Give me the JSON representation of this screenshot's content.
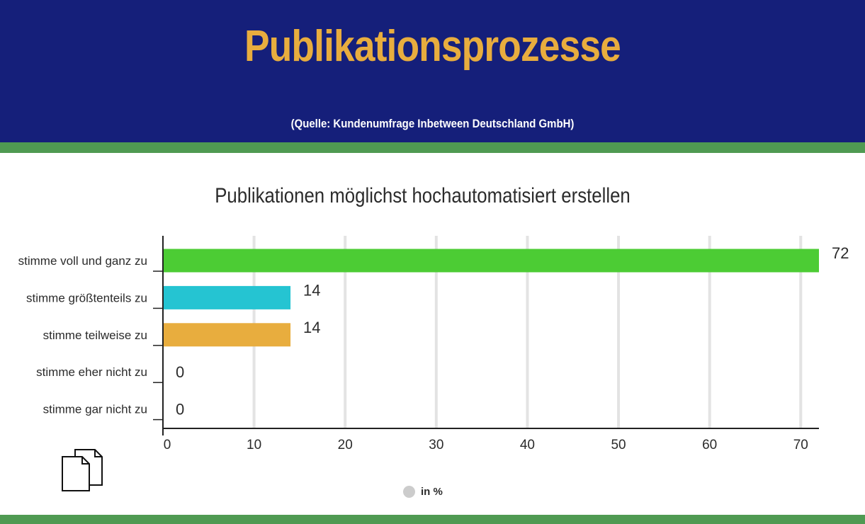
{
  "header": {
    "title": "Publikationsprozesse",
    "source": "(Quelle: Kundenumfrage Inbetween Deutschland GmbH)"
  },
  "colors": {
    "header_bg": "#151f7a",
    "title": "#e8ad3e",
    "band": "#4f9a52"
  },
  "icons": {
    "document": "documents-icon"
  },
  "chart_data": {
    "type": "bar",
    "orientation": "horizontal",
    "title": "Publikationen möglichst hochautomatisiert erstellen",
    "categories": [
      "stimme voll und ganz zu",
      "stimme größtenteils zu",
      "stimme teilweise zu",
      "stimme eher nicht zu",
      "stimme gar nicht zu"
    ],
    "values": [
      72,
      14,
      14,
      0,
      0
    ],
    "colors": [
      "#4ccc34",
      "#25c4d2",
      "#e8ad3e",
      "#4ccc34",
      "#4ccc34"
    ],
    "xlim": [
      0,
      72
    ],
    "xticks": [
      0,
      10,
      20,
      30,
      40,
      50,
      60,
      70
    ],
    "grid": true,
    "legend": {
      "label": "in %",
      "placement": "bottom-center",
      "color": "#cccccc"
    }
  }
}
